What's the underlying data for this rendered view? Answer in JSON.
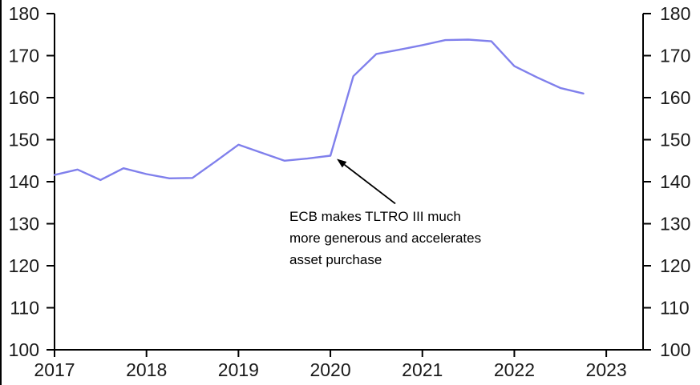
{
  "chart_data": {
    "type": "line",
    "title": "",
    "xlabel": "",
    "ylabel": "",
    "x": [
      2017.0,
      2017.25,
      2017.5,
      2017.75,
      2018.0,
      2018.25,
      2018.5,
      2018.75,
      2019.0,
      2019.25,
      2019.5,
      2019.75,
      2020.0,
      2020.25,
      2020.5,
      2020.75,
      2021.0,
      2021.25,
      2021.5,
      2021.75,
      2022.0,
      2022.25,
      2022.5,
      2022.75
    ],
    "values": [
      141.6,
      142.9,
      140.4,
      143.2,
      141.8,
      140.8,
      140.9,
      144.8,
      148.8,
      146.9,
      145.0,
      145.5,
      146.2,
      165.1,
      170.4,
      171.4,
      172.5,
      173.7,
      173.8,
      173.4,
      167.5,
      164.8,
      162.3,
      161.0
    ],
    "frequency": "quarterly",
    "xlim": [
      2017,
      2023.4
    ],
    "ylim": [
      100,
      180
    ],
    "xticks": [
      2017,
      2018,
      2019,
      2020,
      2021,
      2022,
      2023
    ],
    "yticks": [
      100,
      110,
      120,
      130,
      140,
      150,
      160,
      170,
      180
    ],
    "grid": false,
    "legend": "none",
    "dual_y_axis": true,
    "annotation": {
      "lines": [
        "ECB makes TLTRO III much",
        "more generous and accelerates",
        "asset purchase"
      ],
      "arrow_points_to": {
        "x": 2020.0,
        "value": 146.2
      }
    }
  },
  "colors": {
    "line": "#8080ec",
    "axis": "#000000",
    "text": "#1a1a1a",
    "annotation_text": "#000000",
    "background": "#ffffff"
  }
}
